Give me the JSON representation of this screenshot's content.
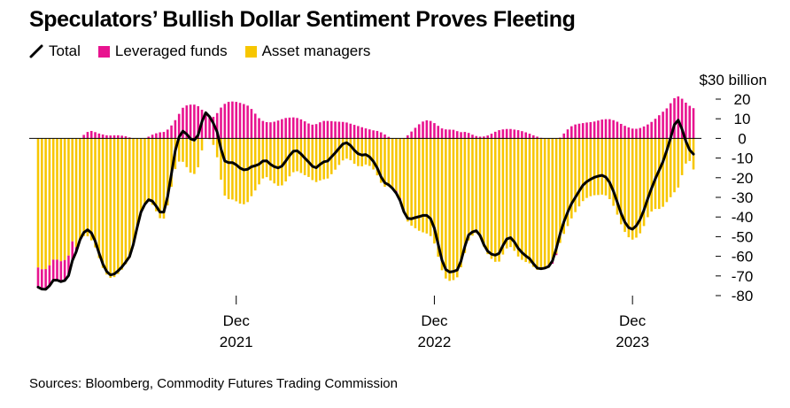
{
  "title": "Speculators’ Bullish Dollar Sentiment Proves Fleeting",
  "legend": [
    {
      "label": "Total",
      "kind": "line",
      "color": "#000000"
    },
    {
      "label": "Leveraged funds",
      "kind": "box",
      "color": "#e8138f"
    },
    {
      "label": "Asset managers",
      "kind": "box",
      "color": "#f7c600"
    }
  ],
  "source": "Sources: Bloomberg, Commodity Futures Trading Commission",
  "chart_data": {
    "type": "bar",
    "title": "Speculators’ Bullish Dollar Sentiment Proves Fleeting",
    "ylabel": "$30 billion",
    "ylim": [
      -80,
      20
    ],
    "yticks": [
      20,
      10,
      0,
      -10,
      -20,
      -30,
      -40,
      -50,
      -60,
      -70,
      -80
    ],
    "xticks": [
      {
        "index": 52,
        "line1": "Dec",
        "line2": "2021"
      },
      {
        "index": 104,
        "line1": "Dec",
        "line2": "2022"
      },
      {
        "index": 156,
        "line1": "Dec",
        "line2": "2023"
      }
    ],
    "stacked": "diverging",
    "series": [
      {
        "name": "Leveraged funds",
        "color": "#e8138f",
        "values": [
          -10,
          -10.1,
          -10.2,
          -10.4,
          -10.5,
          -10.4,
          -10.4,
          -10.4,
          -10.2,
          -9.9,
          -2.4,
          -0.2,
          1.8,
          3.3,
          3.8,
          3.2,
          2.5,
          2,
          1.6,
          1.5,
          1.6,
          1.6,
          1.4,
          1.1,
          0.5,
          -0.2,
          -0.6,
          -0.6,
          -0.2,
          0.9,
          1.9,
          2.6,
          3.1,
          3.3,
          4.5,
          6.6,
          9.3,
          12.5,
          15.6,
          16.8,
          17.2,
          17.2,
          16.4,
          14.6,
          12.9,
          11.5,
          11,
          12.9,
          15.7,
          17.6,
          18.6,
          18.8,
          18.6,
          18.1,
          17.5,
          16.7,
          15,
          12.6,
          10.3,
          8.9,
          8.3,
          8.2,
          8.5,
          9.1,
          9.8,
          10.4,
          10.6,
          10.7,
          10.4,
          9.7,
          8.7,
          7.6,
          7,
          7.3,
          8.2,
          8.9,
          8.9,
          8.8,
          8.6,
          8.5,
          8.4,
          8.1,
          7.5,
          6.9,
          6.3,
          5.7,
          5.1,
          4.6,
          4.1,
          3.8,
          3.1,
          2,
          0.8,
          -0.4,
          -1.2,
          -1.2,
          -0.2,
          1.6,
          3.5,
          5.4,
          7.2,
          8.6,
          9.2,
          8.9,
          7.8,
          6.4,
          5.1,
          4.6,
          4.5,
          4.4,
          3.7,
          3.2,
          3.3,
          2.8,
          1.9,
          1.2,
          0.9,
          1,
          1.5,
          2.4,
          3.4,
          4.2,
          4.6,
          4.8,
          4.8,
          4.5,
          4.2,
          3.7,
          3.1,
          2.4,
          1.6,
          0.9,
          0.3,
          -0.3,
          -0.8,
          -1.1,
          -0.8,
          0.4,
          2.5,
          4.6,
          6.2,
          7.1,
          7.5,
          7.8,
          8.1,
          8.3,
          8.6,
          9.1,
          9.6,
          9.8,
          9.8,
          9.3,
          8.5,
          7.4,
          6.4,
          5.6,
          5,
          4.9,
          5.3,
          6.1,
          7.1,
          8.4,
          10,
          11.8,
          13.6,
          15.3,
          17.9,
          20.5,
          21.4,
          20.2,
          18.2,
          16.6,
          15.4
        ]
      },
      {
        "name": "Asset managers",
        "color": "#f7c600",
        "values": [
          -65.7,
          -66.6,
          -66.5,
          -64.6,
          -61.7,
          -61.7,
          -62.5,
          -61.9,
          -59.6,
          -52.4,
          -55.3,
          -51.4,
          -49.7,
          -49.8,
          -51.9,
          -55.5,
          -60.9,
          -65.9,
          -69.3,
          -71,
          -70.6,
          -69,
          -66.8,
          -64,
          -60.7,
          -53.7,
          -44.7,
          -36.9,
          -33.4,
          -32.1,
          -33.8,
          -37.1,
          -40.6,
          -40.8,
          -34.1,
          -24.6,
          -15.6,
          -11.8,
          -11.9,
          -14.6,
          -17.4,
          -18.1,
          -14.7,
          -6.1,
          0.2,
          -0.4,
          -3.3,
          -9.6,
          -21,
          -29.1,
          -30.9,
          -31.1,
          -32,
          -33.2,
          -33.5,
          -32.4,
          -29.4,
          -26.5,
          -23.4,
          -20.4,
          -19.7,
          -21.4,
          -22.9,
          -24.1,
          -23.9,
          -21.9,
          -19.3,
          -17.2,
          -16.7,
          -17.6,
          -18.7,
          -19.6,
          -21.2,
          -22.2,
          -21.4,
          -20.8,
          -20.4,
          -18.2,
          -15.9,
          -13.5,
          -11.2,
          -10.3,
          -11.1,
          -12.9,
          -14.1,
          -14.2,
          -13.3,
          -14,
          -15.8,
          -18.8,
          -22.6,
          -24.6,
          -24.4,
          -25,
          -26.7,
          -30.4,
          -37.1,
          -42.3,
          -44.4,
          -45.7,
          -47,
          -47.8,
          -48.4,
          -49.7,
          -53.5,
          -60.2,
          -67.1,
          -71.3,
          -72.5,
          -72.1,
          -70.7,
          -65.6,
          -58.3,
          -51.9,
          -49.5,
          -48.2,
          -50.3,
          -55.1,
          -58.9,
          -61.3,
          -62.8,
          -62.7,
          -59.1,
          -56,
          -55.3,
          -57.2,
          -60.1,
          -61.8,
          -62.9,
          -63.6,
          -65.4,
          -66.9,
          -66.6,
          -65.7,
          -64.4,
          -62.7,
          -58.6,
          -53.2,
          -48.6,
          -44.6,
          -40.7,
          -37.5,
          -34.6,
          -31.9,
          -30.3,
          -29.4,
          -28.9,
          -28.8,
          -28.6,
          -29,
          -30.9,
          -34.3,
          -38.8,
          -43.7,
          -47.6,
          -50.3,
          -51.5,
          -50.5,
          -48.3,
          -44.6,
          -40.1,
          -37.2,
          -35.9,
          -35.9,
          -34.8,
          -32.4,
          -29.9,
          -27.4,
          -25,
          -18.7,
          -12.8,
          -11.5,
          -15.8,
          -21.5,
          -24.3,
          -23.4
        ]
      }
    ],
    "total": {
      "name": "Total",
      "color": "#000000",
      "values": [
        -75.7,
        -76.7,
        -76.8,
        -75,
        -72.2,
        -72.1,
        -72.9,
        -72.3,
        -69.8,
        -62.2,
        -57.7,
        -51.6,
        -47.9,
        -46.5,
        -48.1,
        -52.3,
        -58.4,
        -63.9,
        -67.7,
        -69.5,
        -69,
        -67.4,
        -65.4,
        -62.9,
        -60.2,
        -53.9,
        -45.3,
        -37.5,
        -33.6,
        -31.2,
        -31.9,
        -34.5,
        -37.5,
        -37.5,
        -29.6,
        -18,
        -6.3,
        0.7,
        3.7,
        2.2,
        -0.2,
        -0.9,
        1.7,
        8.5,
        13.1,
        11.1,
        7.7,
        3.3,
        -5.3,
        -11.5,
        -12.3,
        -12.3,
        -13.4,
        -15.1,
        -16,
        -15.7,
        -14.4,
        -13.9,
        -13.1,
        -11.5,
        -11.4,
        -13.2,
        -14.4,
        -15,
        -14.1,
        -11.5,
        -8.7,
        -6.5,
        -6.3,
        -7.9,
        -10,
        -12,
        -14.2,
        -14.9,
        -13.2,
        -11.9,
        -11.5,
        -9.4,
        -7.3,
        -5,
        -2.8,
        -2.2,
        -3.6,
        -6,
        -7.8,
        -8.5,
        -8.2,
        -9.4,
        -11.7,
        -15,
        -19.5,
        -22.6,
        -23.6,
        -25.4,
        -27.9,
        -31.6,
        -37.3,
        -40.7,
        -40.9,
        -40.3,
        -39.8,
        -39.2,
        -39.2,
        -40.8,
        -45.7,
        -53.8,
        -62,
        -66.7,
        -68,
        -67.7,
        -67,
        -62.4,
        -55,
        -49.1,
        -47.6,
        -47,
        -49.4,
        -54.1,
        -57.4,
        -58.9,
        -59.4,
        -58.5,
        -54.5,
        -51.2,
        -50.5,
        -52.7,
        -55.9,
        -58.1,
        -59.8,
        -61.2,
        -63.8,
        -66,
        -66.3,
        -66,
        -65.2,
        -62.3,
        -56.1,
        -48.6,
        -42.4,
        -37.5,
        -33.2,
        -30,
        -26.8,
        -23.8,
        -22,
        -20.8,
        -19.8,
        -19.2,
        -18.8,
        -19.7,
        -22.4,
        -26.9,
        -32.4,
        -38.1,
        -42.6,
        -45.4,
        -46.2,
        -44.4,
        -41.2,
        -36.5,
        -30.7,
        -25.4,
        -20.5,
        -16.2,
        -11.8,
        -6.1,
        0.2,
        7,
        9.3,
        4.7,
        -1.4,
        -5.9,
        -8
      ]
    }
  }
}
